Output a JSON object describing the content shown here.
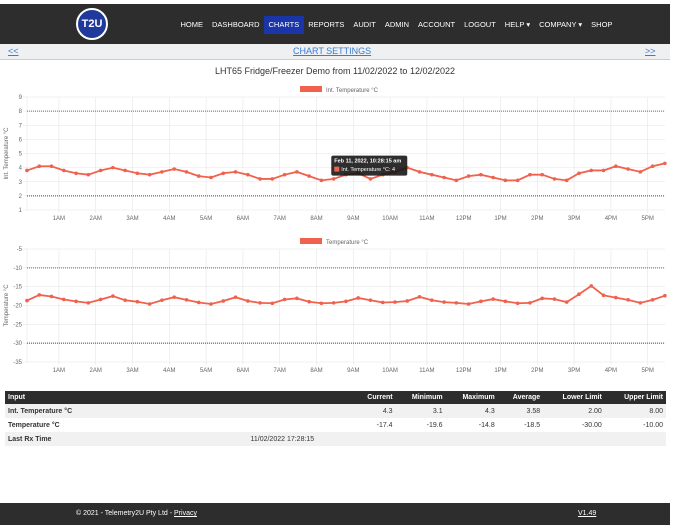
{
  "nav": {
    "logo": "T2U",
    "items": [
      "HOME",
      "DASHBOARD",
      "CHARTS",
      "REPORTS",
      "AUDIT",
      "ADMIN",
      "ACCOUNT",
      "LOGOUT",
      "HELP ▾",
      "COMPANY ▾",
      "SHOP"
    ],
    "active": "CHARTS"
  },
  "settings": {
    "prev": "<<",
    "label": "CHART SETTINGS",
    "next": ">>"
  },
  "page_title": "LHT65 Fridge/Freezer Demo from 11/02/2022 to 12/02/2022",
  "tooltip": {
    "title": "Feb 11, 2022, 10:28:15 am",
    "text": "Int. Temperature °C: 4"
  },
  "chart_data": [
    {
      "type": "line",
      "series": [
        {
          "name": "Int. Temperature °C",
          "color": "#f0624d",
          "values": [
            3.8,
            4.1,
            4.1,
            3.8,
            3.6,
            3.5,
            3.8,
            4.0,
            3.8,
            3.6,
            3.5,
            3.7,
            3.9,
            3.7,
            3.4,
            3.3,
            3.6,
            3.7,
            3.5,
            3.2,
            3.2,
            3.5,
            3.7,
            3.4,
            3.1,
            3.2,
            3.5,
            3.6,
            3.2,
            3.5,
            3.7,
            4.0,
            3.7,
            3.5,
            3.3,
            3.1,
            3.4,
            3.5,
            3.3,
            3.1,
            3.1,
            3.5,
            3.5,
            3.2,
            3.1,
            3.6,
            3.8,
            3.8,
            4.1,
            3.9,
            3.7,
            4.1,
            4.3
          ]
        }
      ],
      "ylabel": "Int. Temperature °C",
      "ylim": [
        1,
        9
      ],
      "yticks": [
        "1",
        "2",
        "3",
        "4",
        "5",
        "6",
        "7",
        "8",
        "9"
      ],
      "upper_limit": 8,
      "lower_limit": 2,
      "upper_color": "#e8334a",
      "lower_color": "#3a3ab8",
      "legend": "top",
      "grid": true
    },
    {
      "type": "line",
      "series": [
        {
          "name": "Temperature °C",
          "color": "#f0624d",
          "values": [
            -18.7,
            -17.2,
            -17.6,
            -18.4,
            -18.9,
            -19.3,
            -18.4,
            -17.5,
            -18.6,
            -19.0,
            -19.6,
            -18.6,
            -17.8,
            -18.5,
            -19.2,
            -19.6,
            -18.8,
            -17.8,
            -18.8,
            -19.3,
            -19.4,
            -18.4,
            -18.1,
            -19.0,
            -19.4,
            -19.3,
            -18.9,
            -18.0,
            -18.6,
            -19.2,
            -19.1,
            -18.8,
            -17.7,
            -18.6,
            -19.1,
            -19.3,
            -19.6,
            -18.9,
            -18.3,
            -18.9,
            -19.4,
            -19.3,
            -18.1,
            -18.3,
            -19.1,
            -17.0,
            -14.8,
            -17.3,
            -17.9,
            -18.5,
            -19.3,
            -18.5,
            -17.4
          ]
        }
      ],
      "ylabel": "Temperature °C",
      "ylim": [
        -35,
        -5
      ],
      "yticks": [
        "-35",
        "-30",
        "-25",
        "-20",
        "-15",
        "-10",
        "-5"
      ],
      "upper_limit": -10,
      "lower_limit": -30,
      "upper_color": "#e8334a",
      "lower_color": "#3a3ab8",
      "legend": "top",
      "grid": true
    }
  ],
  "x_times": [
    "00:08",
    "00:28",
    "00:48",
    "01:08",
    "01:28",
    "01:48",
    "02:08",
    "02:28",
    "02:48",
    "03:08",
    "03:28",
    "03:48",
    "04:08",
    "04:28",
    "04:48",
    "05:08",
    "05:28",
    "05:48",
    "06:08",
    "06:28",
    "06:48",
    "07:08",
    "07:28",
    "07:48",
    "08:08",
    "08:28",
    "08:48",
    "09:08",
    "09:28",
    "09:48",
    "10:08",
    "10:28",
    "10:48",
    "11:08",
    "11:28",
    "11:48",
    "12:08",
    "12:28",
    "12:48",
    "13:08",
    "13:28",
    "13:48",
    "14:08",
    "14:28",
    "14:48",
    "15:08",
    "15:28",
    "15:48",
    "16:08",
    "16:28",
    "16:48",
    "17:08",
    "17:28"
  ],
  "x_ticks": [
    "1AM",
    "2AM",
    "3AM",
    "4AM",
    "5AM",
    "6AM",
    "7AM",
    "8AM",
    "9AM",
    "10AM",
    "11AM",
    "12PM",
    "1PM",
    "2PM",
    "3PM",
    "4PM",
    "5PM"
  ],
  "table": {
    "headers": [
      "Input",
      "Current",
      "Minimum",
      "Maximum",
      "Average",
      "Lower Limit",
      "Upper Limit"
    ],
    "rows": [
      [
        "Int. Temperature °C",
        "4.3",
        "3.1",
        "4.3",
        "3.58",
        "2.00",
        "8.00"
      ],
      [
        "Temperature °C",
        "-17.4",
        "-19.6",
        "-14.8",
        "-18.5",
        "-30.00",
        "-10.00"
      ],
      [
        "Last Rx Time",
        "11/02/2022 17:28:15",
        "",
        "",
        "",
        "",
        ""
      ]
    ]
  },
  "footer": {
    "copyright": "© 2021 - Telemetry2U Pty Ltd - ",
    "privacy": "Privacy",
    "version": "V1.49"
  }
}
